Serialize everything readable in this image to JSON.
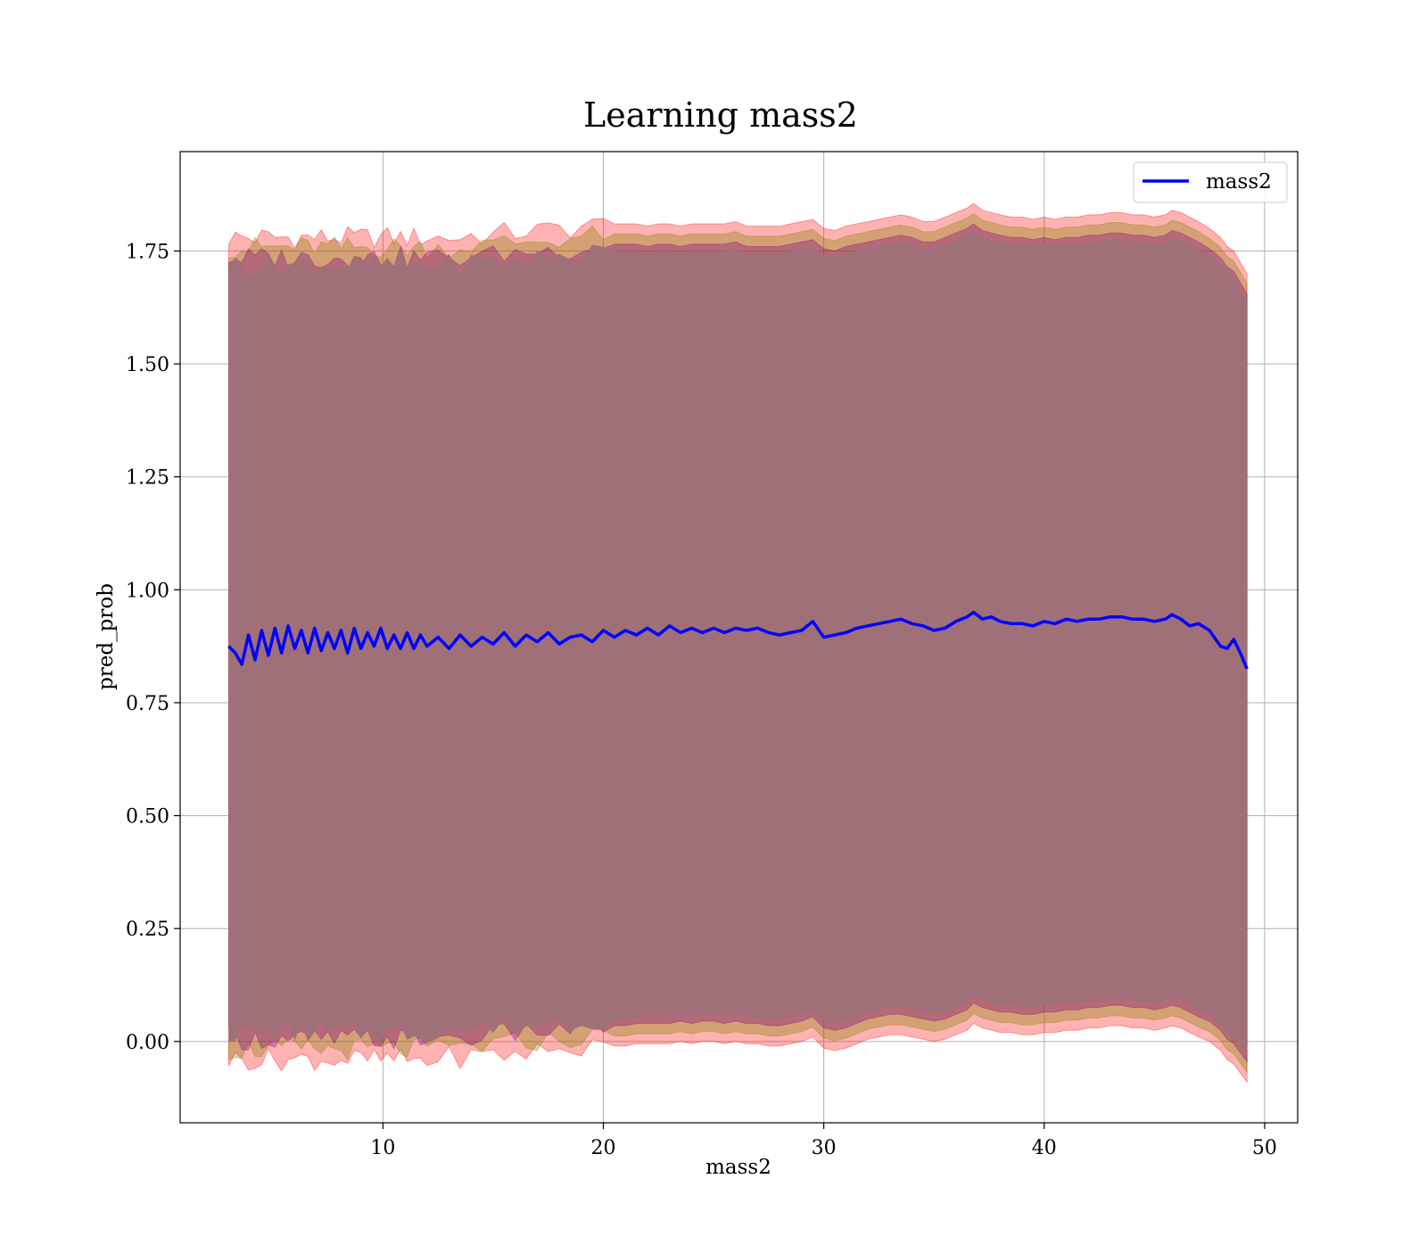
{
  "chart_data": {
    "type": "line",
    "title": "Learning mass2",
    "xlabel": "mass2",
    "ylabel": "pred_prob",
    "xlim": [
      0.8,
      51.5
    ],
    "ylim": [
      -0.18,
      1.97
    ],
    "xticks": [
      10,
      20,
      30,
      40,
      50
    ],
    "xtick_labels": [
      "10",
      "20",
      "30",
      "40",
      "50"
    ],
    "yticks": [
      0.0,
      0.25,
      0.5,
      0.75,
      1.0,
      1.25,
      1.5,
      1.75
    ],
    "ytick_labels": [
      "0.00",
      "0.25",
      "0.50",
      "0.75",
      "1.00",
      "1.25",
      "1.50",
      "1.75"
    ],
    "grid": true,
    "legend": {
      "position": "top-right",
      "entries": [
        "mass2"
      ]
    },
    "colors": {
      "line": "#0000ff",
      "band_outer": "#ff0000",
      "band_mid": "#808000",
      "band_inner": "#800080",
      "band_core": "#a07078",
      "grid": "#b0b0b0"
    },
    "series": [
      {
        "name": "mass2",
        "x": [
          3.0,
          3.3,
          3.6,
          3.9,
          4.2,
          4.5,
          4.8,
          5.1,
          5.4,
          5.7,
          6.0,
          6.3,
          6.6,
          6.9,
          7.2,
          7.5,
          7.8,
          8.1,
          8.4,
          8.7,
          9.0,
          9.3,
          9.6,
          9.9,
          10.2,
          10.5,
          10.8,
          11.1,
          11.4,
          11.7,
          12.0,
          12.5,
          13.0,
          13.5,
          14.0,
          14.5,
          15.0,
          15.5,
          16.0,
          16.5,
          17.0,
          17.5,
          18.0,
          18.5,
          19.0,
          19.5,
          20.0,
          20.5,
          21.0,
          21.5,
          22.0,
          22.5,
          23.0,
          23.5,
          24.0,
          24.5,
          25.0,
          25.5,
          26.0,
          26.5,
          27.0,
          27.5,
          28.0,
          28.5,
          29.0,
          29.5,
          30.0,
          30.5,
          31.0,
          31.5,
          32.0,
          32.5,
          33.0,
          33.5,
          34.0,
          34.5,
          35.0,
          35.5,
          36.0,
          36.5,
          36.8,
          37.2,
          37.6,
          38.0,
          38.5,
          39.0,
          39.5,
          40.0,
          40.5,
          41.0,
          41.5,
          42.0,
          42.5,
          43.0,
          43.5,
          44.0,
          44.5,
          45.0,
          45.5,
          45.8,
          46.2,
          46.6,
          47.0,
          47.5,
          48.0,
          48.3,
          48.6,
          48.9,
          49.2
        ],
        "y": [
          0.875,
          0.86,
          0.835,
          0.9,
          0.845,
          0.91,
          0.855,
          0.915,
          0.86,
          0.92,
          0.87,
          0.91,
          0.86,
          0.915,
          0.865,
          0.905,
          0.87,
          0.91,
          0.86,
          0.915,
          0.87,
          0.905,
          0.875,
          0.915,
          0.87,
          0.9,
          0.87,
          0.905,
          0.87,
          0.9,
          0.875,
          0.895,
          0.87,
          0.9,
          0.875,
          0.895,
          0.88,
          0.905,
          0.875,
          0.9,
          0.885,
          0.905,
          0.88,
          0.895,
          0.9,
          0.885,
          0.91,
          0.895,
          0.91,
          0.9,
          0.915,
          0.9,
          0.92,
          0.905,
          0.915,
          0.905,
          0.915,
          0.905,
          0.915,
          0.91,
          0.915,
          0.905,
          0.9,
          0.905,
          0.91,
          0.93,
          0.895,
          0.9,
          0.905,
          0.915,
          0.92,
          0.925,
          0.93,
          0.935,
          0.925,
          0.92,
          0.91,
          0.915,
          0.93,
          0.94,
          0.95,
          0.935,
          0.94,
          0.93,
          0.925,
          0.925,
          0.92,
          0.93,
          0.925,
          0.935,
          0.93,
          0.935,
          0.935,
          0.94,
          0.94,
          0.935,
          0.935,
          0.93,
          0.935,
          0.945,
          0.935,
          0.92,
          0.925,
          0.91,
          0.875,
          0.87,
          0.89,
          0.86,
          0.825
        ]
      }
    ],
    "band": {
      "upper": [
        1.78,
        1.78,
        1.78,
        1.78,
        1.78,
        1.78,
        1.78,
        1.78,
        1.78,
        1.78,
        1.78,
        1.78,
        1.78,
        1.78,
        1.78,
        1.78,
        1.78,
        1.78,
        1.78,
        1.78,
        1.78,
        1.78,
        1.78,
        1.78,
        1.78,
        1.78,
        1.78,
        1.78,
        1.78,
        1.78,
        1.78,
        1.78,
        1.78,
        1.78,
        1.785,
        1.785,
        1.785,
        1.79,
        1.79,
        1.795,
        1.795,
        1.795,
        1.8,
        1.8,
        1.805,
        1.805,
        1.81,
        1.81,
        1.81,
        1.81,
        1.805,
        1.81,
        1.81,
        1.805,
        1.81,
        1.81,
        1.81,
        1.81,
        1.815,
        1.805,
        1.805,
        1.805,
        1.805,
        1.81,
        1.815,
        1.82,
        1.8,
        1.795,
        1.805,
        1.81,
        1.815,
        1.82,
        1.825,
        1.83,
        1.825,
        1.815,
        1.815,
        1.825,
        1.835,
        1.845,
        1.855,
        1.84,
        1.835,
        1.83,
        1.825,
        1.825,
        1.82,
        1.825,
        1.82,
        1.825,
        1.825,
        1.83,
        1.83,
        1.835,
        1.835,
        1.83,
        1.83,
        1.825,
        1.83,
        1.84,
        1.835,
        1.825,
        1.815,
        1.8,
        1.78,
        1.76,
        1.75,
        1.725,
        1.7
      ],
      "lower": [
        -0.04,
        -0.04,
        -0.04,
        -0.04,
        -0.04,
        -0.04,
        -0.04,
        -0.04,
        -0.04,
        -0.04,
        -0.04,
        -0.04,
        -0.04,
        -0.04,
        -0.04,
        -0.04,
        -0.04,
        -0.04,
        -0.04,
        -0.04,
        -0.04,
        -0.04,
        -0.04,
        -0.04,
        -0.04,
        -0.04,
        -0.04,
        -0.04,
        -0.04,
        -0.04,
        -0.04,
        -0.04,
        -0.035,
        -0.035,
        -0.035,
        -0.03,
        -0.03,
        -0.03,
        -0.025,
        -0.025,
        -0.02,
        -0.02,
        -0.02,
        -0.015,
        -0.015,
        -0.015,
        -0.01,
        -0.01,
        -0.01,
        -0.005,
        -0.005,
        -0.005,
        -0.005,
        0.0,
        -0.005,
        0.0,
        0.0,
        -0.005,
        0.0,
        -0.005,
        -0.005,
        -0.01,
        -0.01,
        -0.005,
        0.0,
        0.01,
        -0.015,
        -0.02,
        -0.015,
        -0.005,
        0.005,
        0.01,
        0.015,
        0.015,
        0.01,
        0.005,
        0.0,
        0.005,
        0.015,
        0.025,
        0.04,
        0.03,
        0.025,
        0.02,
        0.02,
        0.015,
        0.015,
        0.02,
        0.02,
        0.025,
        0.025,
        0.03,
        0.03,
        0.035,
        0.035,
        0.03,
        0.03,
        0.025,
        0.03,
        0.035,
        0.03,
        0.02,
        0.01,
        0.0,
        -0.02,
        -0.04,
        -0.05,
        -0.07,
        -0.09
      ]
    }
  }
}
